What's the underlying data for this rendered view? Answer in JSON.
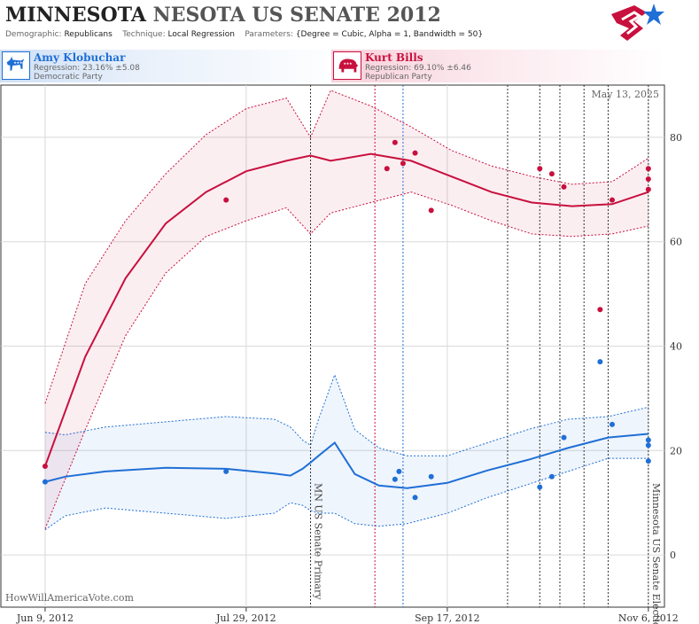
{
  "header": {
    "title_part1": "MINNESOTA",
    "title_part2": "NESOTA US SENATE 2012",
    "demographic_label": "Demographic:",
    "demographic_value": "Republicans",
    "technique_label": "Technique:",
    "technique_value": "Local Regression",
    "parameters_label": "Parameters:",
    "parameters_value": "{Degree = Cubic, Alpha = 1, Bandwidth = 50}"
  },
  "candidates": [
    {
      "name": "Amy Klobuchar",
      "regression": "Regression: 23.16% ±5.08",
      "party": "Democratic Party",
      "color": "#1f6fd6",
      "icon": "donkey-icon"
    },
    {
      "name": "Kurt Bills",
      "regression": "Regression: 69.10% ±6.46",
      "party": "Republican Party",
      "color": "#c8103e",
      "icon": "elephant-icon"
    }
  ],
  "date_stamp": "May 13, 2025",
  "watermark": "HowWillAmericaVote.com",
  "chart_data": {
    "type": "line",
    "x_ticks": [
      {
        "date": "2012-06-09",
        "label": "Jun 9, 2012"
      },
      {
        "date": "2012-07-29",
        "label": "Jul 29, 2012"
      },
      {
        "date": "2012-09-17",
        "label": "Sep 17, 2012"
      },
      {
        "date": "2012-11-06",
        "label": "Nov 6, 2012"
      }
    ],
    "xlim": [
      "2012-05-29",
      "2012-11-10"
    ],
    "y_ticks": [
      0,
      20,
      40,
      60,
      80
    ],
    "ylim": [
      -10,
      90
    ],
    "events": [
      {
        "date": "2012-08-14",
        "label": "MN US Senate Primary"
      },
      {
        "date": "2012-11-06",
        "label": "Minnesota US Senate Election"
      }
    ],
    "poll_lines": [
      {
        "date": "2012-08-30",
        "color": "#c8103e"
      },
      {
        "date": "2012-09-06",
        "color": "#1f6fd6"
      },
      {
        "date": "2012-10-02",
        "color": "#333333"
      },
      {
        "date": "2012-10-10",
        "color": "#333333"
      },
      {
        "date": "2012-10-15",
        "color": "#333333"
      },
      {
        "date": "2012-10-21",
        "color": "#333333"
      },
      {
        "date": "2012-10-27",
        "color": "#333333"
      }
    ],
    "series": [
      {
        "name": "Amy Klobuchar",
        "color": "#1f6fd6",
        "x": [
          "2012-06-09",
          "2012-06-14",
          "2012-06-24",
          "2012-07-09",
          "2012-07-24",
          "2012-08-05",
          "2012-08-09",
          "2012-08-12",
          "2012-08-14",
          "2012-08-16",
          "2012-08-20",
          "2012-08-25",
          "2012-08-31",
          "2012-09-07",
          "2012-09-17",
          "2012-09-27",
          "2012-10-07",
          "2012-10-17",
          "2012-10-27",
          "2012-11-06"
        ],
        "fit": [
          14.0,
          15.0,
          16.0,
          16.7,
          16.5,
          15.6,
          15.2,
          16.5,
          17.7,
          19.0,
          21.5,
          15.5,
          13.3,
          12.8,
          13.8,
          16.2,
          18.2,
          20.5,
          22.5,
          23.2
        ],
        "upper": [
          23.5,
          23.0,
          24.5,
          25.5,
          26.5,
          26.0,
          24.5,
          22.0,
          21.0,
          26.0,
          34.5,
          24.0,
          20.5,
          19.0,
          19.0,
          21.5,
          24.0,
          26.0,
          26.5,
          28.3
        ],
        "lower": [
          4.8,
          7.5,
          9.0,
          8.0,
          7.0,
          8.0,
          10.0,
          9.5,
          8.5,
          8.0,
          8.0,
          6.0,
          5.5,
          6.0,
          8.0,
          11.0,
          13.5,
          16.0,
          18.5,
          18.5
        ],
        "points": [
          {
            "x": "2012-06-09",
            "y": 14
          },
          {
            "x": "2012-07-24",
            "y": 16
          },
          {
            "x": "2012-09-04",
            "y": 14.5
          },
          {
            "x": "2012-09-05",
            "y": 16
          },
          {
            "x": "2012-09-09",
            "y": 11
          },
          {
            "x": "2012-09-13",
            "y": 15
          },
          {
            "x": "2012-10-10",
            "y": 13
          },
          {
            "x": "2012-10-13",
            "y": 15
          },
          {
            "x": "2012-10-16",
            "y": 22.5
          },
          {
            "x": "2012-10-25",
            "y": 37
          },
          {
            "x": "2012-10-28",
            "y": 25
          },
          {
            "x": "2012-11-06",
            "y": 22
          },
          {
            "x": "2012-11-06",
            "y": 21
          },
          {
            "x": "2012-11-06",
            "y": 18
          }
        ]
      },
      {
        "name": "Kurt Bills",
        "color": "#c8103e",
        "x": [
          "2012-06-09",
          "2012-06-19",
          "2012-06-29",
          "2012-07-09",
          "2012-07-19",
          "2012-07-29",
          "2012-08-08",
          "2012-08-14",
          "2012-08-19",
          "2012-08-29",
          "2012-09-08",
          "2012-09-18",
          "2012-09-28",
          "2012-10-08",
          "2012-10-18",
          "2012-10-28",
          "2012-11-06"
        ],
        "fit": [
          17.0,
          38.0,
          53.0,
          63.5,
          69.5,
          73.5,
          75.5,
          76.5,
          75.5,
          76.8,
          75.5,
          72.5,
          69.5,
          67.5,
          66.8,
          67.2,
          69.5
        ],
        "upper": [
          29.0,
          52.0,
          64.0,
          73.0,
          80.5,
          85.5,
          87.5,
          80.0,
          89.0,
          86.0,
          82.0,
          77.5,
          74.5,
          72.5,
          71.0,
          71.5,
          76.0
        ],
        "lower": [
          5.0,
          24.0,
          42.0,
          54.0,
          61.0,
          64.0,
          66.5,
          61.5,
          65.5,
          67.5,
          69.5,
          67.0,
          64.0,
          61.5,
          61.0,
          61.5,
          63.0
        ],
        "points": [
          {
            "x": "2012-06-09",
            "y": 17
          },
          {
            "x": "2012-07-24",
            "y": 68
          },
          {
            "x": "2012-09-02",
            "y": 74
          },
          {
            "x": "2012-09-04",
            "y": 79
          },
          {
            "x": "2012-09-06",
            "y": 75
          },
          {
            "x": "2012-09-09",
            "y": 77
          },
          {
            "x": "2012-09-13",
            "y": 66
          },
          {
            "x": "2012-10-10",
            "y": 74
          },
          {
            "x": "2012-10-13",
            "y": 73
          },
          {
            "x": "2012-10-16",
            "y": 70.5
          },
          {
            "x": "2012-10-25",
            "y": 47
          },
          {
            "x": "2012-10-28",
            "y": 68
          },
          {
            "x": "2012-11-06",
            "y": 74
          },
          {
            "x": "2012-11-06",
            "y": 72
          },
          {
            "x": "2012-11-06",
            "y": 70
          }
        ]
      }
    ]
  }
}
